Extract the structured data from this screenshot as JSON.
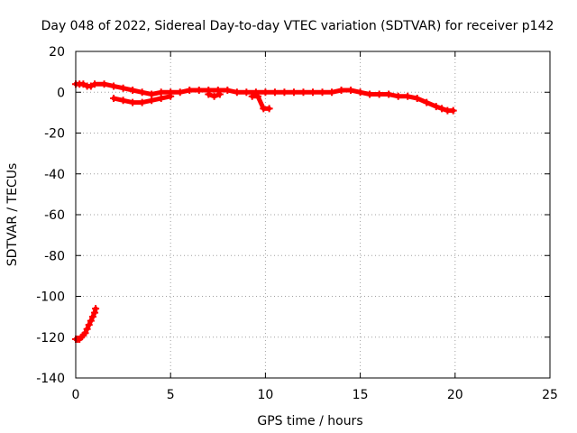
{
  "chart_data": {
    "type": "scatter",
    "title": "Day 048 of 2022, Sidereal Day-to-day VTEC variation (SDTVAR) for receiver p142",
    "xlabel": "GPS time / hours",
    "ylabel": "SDTVAR / TECUs",
    "xlim": [
      0,
      25
    ],
    "ylim": [
      -140,
      20
    ],
    "xticks": [
      0,
      5,
      10,
      15,
      20,
      25
    ],
    "yticks": [
      20,
      0,
      -20,
      -40,
      -60,
      -80,
      -100,
      -120,
      -140
    ],
    "grid": true,
    "marker": "plus",
    "series_color": "#ff0000",
    "series": [
      {
        "name": "main-trace",
        "x": [
          0.0,
          0.2,
          0.4,
          0.6,
          0.8,
          1.0,
          1.5,
          2.0,
          2.5,
          3.0,
          3.5,
          4.0,
          4.5,
          5.0,
          5.5,
          6.0,
          6.5,
          7.0,
          7.5,
          8.0,
          8.5,
          9.0,
          9.5,
          10.0,
          10.5,
          11.0,
          11.5,
          12.0,
          12.5,
          13.0,
          13.5,
          14.0,
          14.5,
          15.0,
          15.5,
          16.0,
          16.5,
          17.0,
          17.5,
          18.0,
          18.5,
          19.0,
          19.3,
          19.6,
          19.9
        ],
        "y": [
          4,
          4,
          4,
          3,
          3,
          4,
          4,
          3,
          2,
          1,
          0,
          -1,
          0,
          0,
          0,
          1,
          1,
          1,
          1,
          1,
          0,
          0,
          0,
          0,
          0,
          0,
          0,
          0,
          0,
          0,
          0,
          1,
          1,
          0,
          -1,
          -1,
          -1,
          -2,
          -2,
          -3,
          -5,
          -7,
          -8,
          -9,
          -9
        ]
      },
      {
        "name": "lower-segment",
        "x": [
          2.0,
          2.5,
          3.0,
          3.5,
          4.0,
          4.5,
          5.0
        ],
        "y": [
          -3,
          -4,
          -5,
          -5,
          -4,
          -3,
          -2
        ]
      },
      {
        "name": "dip-around-7h",
        "x": [
          7.0,
          7.3,
          7.6
        ],
        "y": [
          -1,
          -2,
          -1
        ]
      },
      {
        "name": "dip-around-9.5h",
        "x": [
          9.3,
          9.6,
          9.9,
          10.2
        ],
        "y": [
          -2,
          -2,
          -8,
          -8
        ]
      },
      {
        "name": "early-outlier-trace",
        "x": [
          0.0,
          0.1,
          0.2,
          0.3,
          0.4,
          0.5,
          0.6,
          0.7,
          0.8,
          0.9,
          1.0,
          1.05
        ],
        "y": [
          -121,
          -121,
          -121,
          -120,
          -119,
          -118,
          -116,
          -114,
          -112,
          -110,
          -108,
          -106
        ]
      }
    ]
  }
}
